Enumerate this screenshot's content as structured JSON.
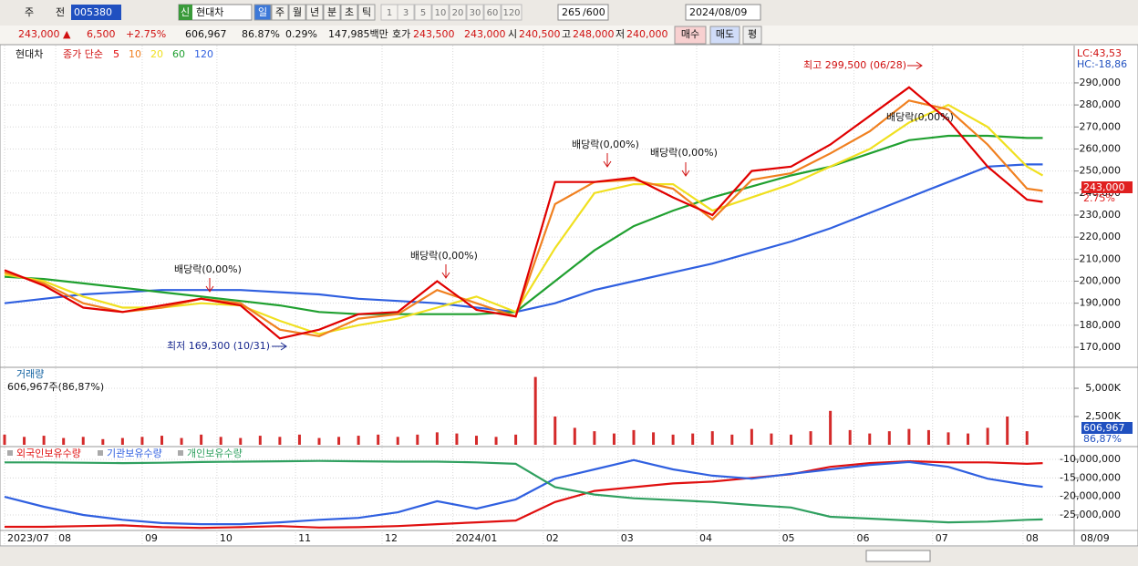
{
  "toolbar": {
    "market": "주",
    "prev": "전",
    "code": "005380",
    "badge": "신",
    "name": "현대차",
    "periods": [
      "일",
      "주",
      "월",
      "년",
      "분",
      "초",
      "틱"
    ],
    "intervals": [
      "1",
      "3",
      "5",
      "10",
      "20",
      "30",
      "60",
      "120"
    ],
    "count": "265",
    "total": "/600",
    "date": "2024/08/09"
  },
  "quote": {
    "items": [
      "243,000 ▲",
      "6,500",
      "+2.75%",
      "606,967",
      "86.87%",
      "0.29%",
      "147,985백만",
      "호가",
      "243,500",
      "243,000",
      "시",
      "240,500",
      "고",
      "248,000",
      "저",
      "240,000"
    ],
    "buttons": [
      "매수",
      "매도",
      "평"
    ]
  },
  "price_panel": {
    "type": "line",
    "label": "현대차",
    "legend_title": "종가 단순",
    "xlim": [
      0,
      272
    ],
    "x": [
      0,
      10,
      20,
      30,
      40,
      50,
      60,
      70,
      80,
      90,
      100,
      110,
      120,
      130,
      140,
      150,
      160,
      170,
      180,
      190,
      200,
      210,
      220,
      230,
      240,
      250,
      260,
      264
    ],
    "series": [
      {
        "name": "120",
        "color": "#3060e0",
        "values": [
          190000,
          192000,
          194000,
          195000,
          196000,
          196000,
          196000,
          195000,
          194000,
          192000,
          191000,
          190000,
          188000,
          186000,
          190000,
          196000,
          200000,
          204000,
          208000,
          213000,
          218000,
          224000,
          231000,
          238000,
          245000,
          252000,
          253000,
          253000
        ]
      },
      {
        "name": "60",
        "color": "#20a030",
        "values": [
          202000,
          201000,
          199000,
          197000,
          195000,
          193000,
          191000,
          189000,
          186000,
          185000,
          185000,
          185000,
          185000,
          186000,
          200000,
          214000,
          225000,
          232000,
          238000,
          243000,
          248000,
          252000,
          258000,
          264000,
          266000,
          266000,
          265000,
          265000
        ]
      },
      {
        "name": "20",
        "color": "#f0e020",
        "values": [
          203000,
          200000,
          193000,
          188000,
          188000,
          190000,
          189000,
          182000,
          176000,
          180000,
          183000,
          188000,
          193000,
          186000,
          215000,
          240000,
          244000,
          244000,
          232000,
          238000,
          244000,
          252000,
          260000,
          272000,
          280000,
          270000,
          252000,
          248000
        ]
      },
      {
        "name": "10",
        "color": "#f08020",
        "values": [
          204000,
          199000,
          190000,
          186000,
          188000,
          192000,
          190000,
          178000,
          175000,
          183000,
          185000,
          196000,
          190000,
          184000,
          235000,
          245000,
          246000,
          242000,
          228000,
          246000,
          249000,
          258000,
          268000,
          282000,
          278000,
          262000,
          242000,
          241000
        ]
      },
      {
        "name": "5",
        "color": "#e00000",
        "values": [
          205000,
          198000,
          188000,
          186000,
          189000,
          192000,
          189000,
          174000,
          178000,
          185000,
          186000,
          200000,
          187000,
          184000,
          245000,
          245000,
          247000,
          238000,
          230000,
          250000,
          252000,
          262000,
          275000,
          288000,
          273000,
          252000,
          237000,
          236000
        ]
      }
    ],
    "ylim": [
      160900,
      305700
    ],
    "yticks": [
      {
        "value": 170000,
        "label": "170,000"
      },
      {
        "value": 180000,
        "label": "180,000"
      },
      {
        "value": 190000,
        "label": "190,000"
      },
      {
        "value": 200000,
        "label": "200,000"
      },
      {
        "value": 210000,
        "label": "210,000"
      },
      {
        "value": 220000,
        "label": "220,000"
      },
      {
        "value": 230000,
        "label": "230,000"
      },
      {
        "value": 240000,
        "label": "240,000"
      },
      {
        "value": 250000,
        "label": "250,000"
      },
      {
        "value": 260000,
        "label": "260,000"
      },
      {
        "value": 270000,
        "label": "270,000"
      },
      {
        "value": 280000,
        "label": "280,000"
      },
      {
        "value": 290000,
        "label": "290,000"
      }
    ],
    "annotations": [
      "최고 299,500 (06/28)",
      "최저 169,300 (10/31)",
      "배당락(0,00%)",
      "배당락(0,00%)",
      "배당락(0,00%)",
      "배당락(0,00%)",
      "배당락(0,00%)"
    ],
    "side_labels": [
      "LC:43,53",
      "HC:-18,86"
    ],
    "last_price": "243,000",
    "last_change": "2.75%"
  },
  "volume_panel": {
    "type": "bar",
    "title": "거래량",
    "subtitle": "606,967주(86,87%)",
    "color": "#d42a2a",
    "x": [
      0,
      5,
      10,
      15,
      20,
      25,
      30,
      35,
      40,
      45,
      50,
      55,
      60,
      65,
      70,
      75,
      80,
      85,
      90,
      95,
      100,
      105,
      110,
      115,
      120,
      125,
      130,
      135,
      140,
      145,
      150,
      155,
      160,
      165,
      170,
      175,
      180,
      185,
      190,
      195,
      200,
      205,
      210,
      215,
      220,
      225,
      230,
      235,
      240,
      245,
      250,
      255,
      260
    ],
    "values": [
      900,
      700,
      800,
      600,
      700,
      500,
      600,
      700,
      800,
      600,
      900,
      700,
      600,
      800,
      700,
      900,
      600,
      700,
      800,
      900,
      700,
      900,
      1100,
      1000,
      800,
      700,
      900,
      6000,
      2500,
      1500,
      1200,
      1000,
      1300,
      1100,
      900,
      1000,
      1200,
      900,
      1400,
      1000,
      900,
      1200,
      3000,
      1300,
      1000,
      1200,
      1400,
      1300,
      1100,
      1000,
      1500,
      2500,
      1200
    ],
    "ylim": [
      0,
      6694
    ],
    "yticks": [
      {
        "value": 2500,
        "label": "2,500K"
      },
      {
        "value": 5000,
        "label": "5,000K"
      }
    ],
    "last_volume": "606,967",
    "last_ratio": "86,87%"
  },
  "holdings_panel": {
    "type": "line",
    "x": [
      0,
      10,
      20,
      30,
      40,
      50,
      60,
      70,
      80,
      90,
      100,
      110,
      120,
      130,
      140,
      150,
      160,
      170,
      180,
      190,
      200,
      210,
      220,
      230,
      240,
      250,
      260,
      264
    ],
    "series": [
      {
        "name": "외국인보유수량",
        "color": "#e01010",
        "values": [
          -28200000,
          -28200000,
          -28000000,
          -27800000,
          -28300000,
          -28500000,
          -28300000,
          -28000000,
          -28400000,
          -28300000,
          -28000000,
          -27500000,
          -27000000,
          -26500000,
          -21500000,
          -18500000,
          -17500000,
          -16500000,
          -16000000,
          -15000000,
          -14000000,
          -12000000,
          -11000000,
          -10500000,
          -10800000,
          -10800000,
          -11200000,
          -11000000
        ]
      },
      {
        "name": "기관보유수량",
        "color": "#3060e0",
        "values": [
          -20100000,
          -22800000,
          -25000000,
          -26300000,
          -27200000,
          -27500000,
          -27500000,
          -27000000,
          -26300000,
          -25800000,
          -24300000,
          -21300000,
          -23300000,
          -20800000,
          -15200000,
          -12700000,
          -10200000,
          -12700000,
          -14400000,
          -15200000,
          -13900000,
          -12700000,
          -11500000,
          -10700000,
          -12000000,
          -15200000,
          -16900000,
          -17400000
        ]
      },
      {
        "name": "개인보유수량",
        "color": "#30a060",
        "values": [
          -10800000,
          -10800000,
          -10900000,
          -11000000,
          -10900000,
          -10700000,
          -10600000,
          -10500000,
          -10400000,
          -10500000,
          -10600000,
          -10600000,
          -10800000,
          -11200000,
          -17500000,
          -19500000,
          -20500000,
          -21000000,
          -21500000,
          -22300000,
          -23000000,
          -25500000,
          -26000000,
          -26500000,
          -27000000,
          -26800000,
          -26300000,
          -26200000
        ]
      }
    ],
    "ylim": [
      -29190000,
      -7040000
    ],
    "yticks": [
      {
        "value": -10000000,
        "label": "-10,000,000"
      },
      {
        "value": -15000000,
        "label": "-15,000,000"
      },
      {
        "value": -20000000,
        "label": "-20,000,000"
      },
      {
        "value": -25000000,
        "label": "-25,000,000"
      }
    ]
  },
  "x_axis": {
    "ticks": [
      {
        "value": 0,
        "label": "2023/07"
      },
      {
        "value": 13,
        "label": "08"
      },
      {
        "value": 35,
        "label": "09"
      },
      {
        "value": 54,
        "label": "10"
      },
      {
        "value": 74,
        "label": "11"
      },
      {
        "value": 96,
        "label": "12"
      },
      {
        "value": 114,
        "label": "2024/01"
      },
      {
        "value": 137,
        "label": "02"
      },
      {
        "value": 156,
        "label": "03"
      },
      {
        "value": 176,
        "label": "04"
      },
      {
        "value": 197,
        "label": "05"
      },
      {
        "value": 216,
        "label": "06"
      },
      {
        "value": 236,
        "label": "07"
      },
      {
        "value": 259,
        "label": "08"
      }
    ],
    "end_label": "08/09"
  }
}
